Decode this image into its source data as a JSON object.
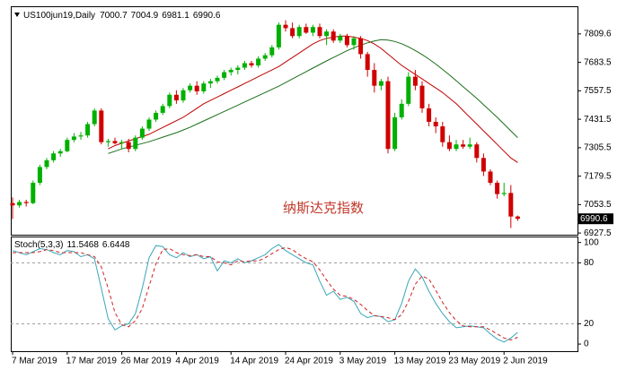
{
  "chart_data": [
    {
      "type": "candlestick",
      "title": "US100jun19,Daily",
      "annotation": "纳斯达克指数",
      "categories": [
        "7 Mar 2019",
        null,
        null,
        null,
        null,
        null,
        null,
        null,
        "17 Mar 2019",
        null,
        null,
        null,
        null,
        null,
        null,
        null,
        "26 Mar 2019",
        null,
        null,
        null,
        null,
        null,
        null,
        null,
        "4 Apr 2019",
        null,
        null,
        null,
        null,
        null,
        null,
        null,
        "14 Apr 2019",
        null,
        null,
        null,
        null,
        null,
        null,
        null,
        "24 Apr 2019",
        null,
        null,
        null,
        null,
        null,
        null,
        null,
        "3 May 2019",
        null,
        null,
        null,
        null,
        null,
        null,
        null,
        "13 May 2019",
        null,
        null,
        null,
        null,
        null,
        null,
        null,
        "23 May 2019",
        null,
        null,
        null,
        null,
        null,
        null,
        null,
        "2 Jun 2019",
        null,
        null
      ],
      "open": [
        7060,
        7050,
        7065,
        7060,
        7150,
        7220,
        7250,
        7280,
        7290,
        7340,
        7355,
        7360,
        7410,
        7470,
        7330,
        7335,
        7325,
        7330,
        7300,
        7350,
        7390,
        7430,
        7460,
        7490,
        7540,
        7515,
        7560,
        7580,
        7555,
        7590,
        7600,
        7615,
        7640,
        7650,
        7660,
        7680,
        7670,
        7700,
        7715,
        7750,
        7850,
        7835,
        7800,
        7840,
        7815,
        7840,
        7800,
        7820,
        7780,
        7800,
        7760,
        7790,
        7720,
        7650,
        7580,
        7600,
        7300,
        7440,
        7500,
        7620,
        7580,
        7480,
        7420,
        7400,
        7330,
        7300,
        7320,
        7310,
        7320,
        7260,
        7200,
        7150,
        7100,
        7105,
        7000.7
      ],
      "high": [
        7085,
        7075,
        7075,
        7160,
        7230,
        7260,
        7290,
        7300,
        7350,
        7370,
        7375,
        7420,
        7480,
        7480,
        7345,
        7350,
        7340,
        7345,
        7360,
        7400,
        7440,
        7470,
        7500,
        7550,
        7560,
        7570,
        7590,
        7600,
        7600,
        7610,
        7625,
        7650,
        7660,
        7670,
        7690,
        7690,
        7710,
        7725,
        7760,
        7860,
        7870,
        7860,
        7850,
        7855,
        7850,
        7855,
        7830,
        7830,
        7810,
        7810,
        7800,
        7800,
        7730,
        7680,
        7610,
        7620,
        7460,
        7520,
        7640,
        7650,
        7600,
        7500,
        7440,
        7420,
        7360,
        7340,
        7340,
        7350,
        7330,
        7280,
        7210,
        7160,
        7150,
        7140,
        7004.9
      ],
      "low": [
        6990,
        7040,
        7045,
        7055,
        7140,
        7210,
        7240,
        7265,
        7285,
        7330,
        7340,
        7350,
        7400,
        7320,
        7310,
        7320,
        7300,
        7285,
        7290,
        7340,
        7380,
        7420,
        7450,
        7480,
        7500,
        7505,
        7550,
        7540,
        7545,
        7570,
        7590,
        7605,
        7625,
        7630,
        7650,
        7660,
        7660,
        7690,
        7705,
        7740,
        7820,
        7790,
        7790,
        7810,
        7800,
        7790,
        7760,
        7770,
        7770,
        7750,
        7740,
        7700,
        7620,
        7550,
        7560,
        7280,
        7290,
        7430,
        7490,
        7560,
        7460,
        7400,
        7370,
        7310,
        7290,
        7290,
        7300,
        7300,
        7240,
        7180,
        7140,
        7080,
        7090,
        6950,
        6981.1
      ],
      "close": [
        7050,
        7065,
        7060,
        7150,
        7220,
        7250,
        7280,
        7290,
        7340,
        7355,
        7360,
        7410,
        7470,
        7330,
        7335,
        7325,
        7330,
        7300,
        7350,
        7390,
        7430,
        7460,
        7490,
        7540,
        7515,
        7560,
        7580,
        7555,
        7590,
        7600,
        7615,
        7640,
        7650,
        7660,
        7680,
        7670,
        7700,
        7715,
        7750,
        7850,
        7835,
        7800,
        7840,
        7815,
        7840,
        7800,
        7820,
        7780,
        7800,
        7760,
        7790,
        7720,
        7650,
        7580,
        7600,
        7300,
        7440,
        7500,
        7620,
        7580,
        7480,
        7420,
        7400,
        7330,
        7300,
        7320,
        7310,
        7320,
        7260,
        7200,
        7150,
        7100,
        7105,
        7000.7,
        6990.6
      ],
      "up_color": "#00b000",
      "down_color": "#d00000",
      "overlays": [
        {
          "color": "#c00000",
          "values": [
            null,
            null,
            null,
            null,
            null,
            null,
            null,
            null,
            null,
            null,
            null,
            null,
            null,
            null,
            7300,
            7315,
            7325,
            7335,
            7345,
            7355,
            7365,
            7380,
            7395,
            7410,
            7425,
            7440,
            7460,
            7480,
            7500,
            7515,
            7530,
            7545,
            7560,
            7575,
            7590,
            7605,
            7620,
            7635,
            7650,
            7665,
            7685,
            7705,
            7725,
            7745,
            7765,
            7780,
            7790,
            7795,
            7800,
            7800,
            7795,
            7790,
            7780,
            7765,
            7745,
            7720,
            7695,
            7670,
            7650,
            7630,
            7610,
            7590,
            7570,
            7550,
            7525,
            7500,
            7470,
            7440,
            7410,
            7380,
            7350,
            7320,
            7290,
            7260,
            7240
          ]
        },
        {
          "color": "#1a6f1a",
          "values": [
            null,
            null,
            null,
            null,
            null,
            null,
            null,
            null,
            null,
            null,
            null,
            null,
            null,
            null,
            7280,
            7290,
            7300,
            7308,
            7316,
            7324,
            7332,
            7342,
            7352,
            7362,
            7372,
            7384,
            7396,
            7410,
            7424,
            7438,
            7452,
            7466,
            7480,
            7494,
            7508,
            7522,
            7536,
            7550,
            7564,
            7578,
            7594,
            7610,
            7626,
            7642,
            7658,
            7674,
            7690,
            7705,
            7720,
            7735,
            7748,
            7760,
            7770,
            7778,
            7784,
            7782,
            7776,
            7766,
            7752,
            7736,
            7718,
            7698,
            7676,
            7652,
            7628,
            7602,
            7576,
            7550,
            7524,
            7496,
            7468,
            7440,
            7410,
            7380,
            7350
          ]
        }
      ],
      "ylim": [
        6920,
        7928
      ],
      "yticks": [
        7809.6,
        7683.5,
        7557.5,
        7431.5,
        7305.5,
        7179.5,
        7053.5,
        6927.5
      ]
    },
    {
      "type": "line",
      "title": "Stoch(5,3,3)",
      "lines": [
        {
          "color": "#3aa6b9",
          "dash": false,
          "values": [
            92,
            90,
            88,
            91,
            94,
            93,
            90,
            88,
            92,
            91,
            86,
            88,
            84,
            55,
            25,
            14,
            18,
            20,
            30,
            55,
            85,
            97,
            96,
            88,
            85,
            90,
            86,
            88,
            84,
            86,
            72,
            82,
            80,
            84,
            80,
            82,
            85,
            88,
            94,
            98,
            92,
            88,
            84,
            80,
            78,
            62,
            48,
            52,
            44,
            46,
            42,
            30,
            26,
            28,
            27,
            22,
            24,
            40,
            62,
            74,
            66,
            52,
            40,
            30,
            22,
            16,
            17,
            18,
            17,
            16,
            10,
            5,
            2,
            6,
            11.5468
          ]
        },
        {
          "color": "#d02020",
          "dash": true,
          "values": [
            90,
            90,
            90,
            90,
            91,
            93,
            92,
            90,
            90,
            90,
            90,
            88,
            86,
            76,
            55,
            31,
            19,
            17,
            23,
            35,
            57,
            79,
            93,
            94,
            90,
            88,
            87,
            88,
            86,
            86,
            81,
            80,
            78,
            82,
            81,
            82,
            82,
            85,
            89,
            93,
            95,
            93,
            88,
            84,
            81,
            73,
            63,
            54,
            48,
            47,
            44,
            39,
            33,
            28,
            27,
            26,
            24,
            29,
            42,
            59,
            67,
            64,
            53,
            41,
            31,
            23,
            18,
            17,
            17,
            17,
            14,
            10,
            6,
            4,
            6.6448
          ]
        }
      ],
      "levels": [
        80,
        20
      ],
      "ylim": [
        -7,
        105
      ],
      "yticks": [
        100,
        80,
        20,
        0
      ]
    }
  ]
}
